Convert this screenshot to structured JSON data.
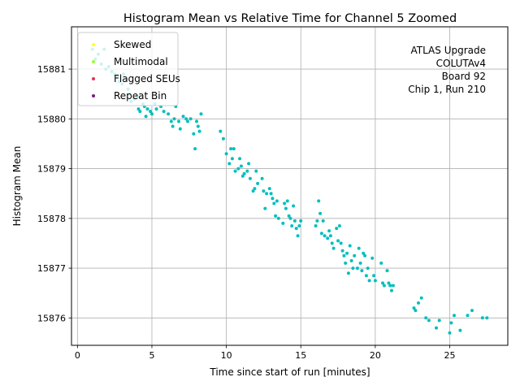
{
  "chart_data": {
    "type": "scatter",
    "title": "Histogram Mean vs Relative Time for Channel 5 Zoomed",
    "xlabel": "Time since start of run [minutes]",
    "ylabel": "Histogram Mean",
    "xlim": [
      -0.4,
      28.9
    ],
    "ylim": [
      15875.45,
      15881.85
    ],
    "xticks": [
      0,
      5,
      10,
      15,
      20,
      25
    ],
    "yticks": [
      15876,
      15877,
      15878,
      15879,
      15880,
      15881
    ],
    "grid": true,
    "legend_position": "top-left",
    "legend": [
      {
        "name": "Skewed",
        "color": "#ffff33"
      },
      {
        "name": "Multimodal",
        "color": "#99ff33"
      },
      {
        "name": "Flagged SEUs",
        "color": "#e8334d"
      },
      {
        "name": "Repeat Bin",
        "color": "#7a1a80"
      }
    ],
    "annotation": [
      "ATLAS Upgrade",
      "COLUTAv4",
      "Board 92",
      "Chip 1, Run 210"
    ],
    "series": [
      {
        "color": "#00bfbf",
        "points": [
          [
            1.0,
            15881.4
          ],
          [
            1.2,
            15881.2
          ],
          [
            1.4,
            15881.3
          ],
          [
            1.6,
            15881.1
          ],
          [
            1.8,
            15881.4
          ],
          [
            1.9,
            15881.0
          ],
          [
            2.1,
            15881.05
          ],
          [
            2.3,
            15880.95
          ],
          [
            2.5,
            15880.9
          ],
          [
            2.7,
            15880.85
          ],
          [
            2.8,
            15880.75
          ],
          [
            3.0,
            15880.7
          ],
          [
            3.1,
            15880.9
          ],
          [
            3.3,
            15880.8
          ],
          [
            3.4,
            15880.6
          ],
          [
            3.5,
            15880.5
          ],
          [
            3.6,
            15880.35
          ],
          [
            3.8,
            15880.4
          ],
          [
            4.0,
            15880.45
          ],
          [
            4.1,
            15880.2
          ],
          [
            4.2,
            15880.15
          ],
          [
            4.4,
            15880.3
          ],
          [
            4.5,
            15880.25
          ],
          [
            4.6,
            15880.05
          ],
          [
            4.7,
            15880.2
          ],
          [
            4.9,
            15880.15
          ],
          [
            5.0,
            15880.1
          ],
          [
            5.2,
            15880.3
          ],
          [
            5.3,
            15880.2
          ],
          [
            5.6,
            15880.25
          ],
          [
            5.8,
            15880.15
          ],
          [
            6.1,
            15880.1
          ],
          [
            6.3,
            15879.95
          ],
          [
            6.4,
            15879.85
          ],
          [
            6.5,
            15880.0
          ],
          [
            6.6,
            15880.25
          ],
          [
            6.8,
            15879.95
          ],
          [
            6.9,
            15879.8
          ],
          [
            7.1,
            15880.05
          ],
          [
            7.3,
            15880.0
          ],
          [
            7.4,
            15879.95
          ],
          [
            7.6,
            15880.0
          ],
          [
            7.8,
            15879.7
          ],
          [
            7.9,
            15879.4
          ],
          [
            8.0,
            15879.95
          ],
          [
            8.1,
            15879.85
          ],
          [
            8.2,
            15879.75
          ],
          [
            8.3,
            15880.1
          ],
          [
            9.6,
            15879.75
          ],
          [
            9.8,
            15879.6
          ],
          [
            10.0,
            15879.3
          ],
          [
            10.2,
            15879.1
          ],
          [
            10.3,
            15879.4
          ],
          [
            10.4,
            15879.2
          ],
          [
            10.5,
            15879.4
          ],
          [
            10.6,
            15878.95
          ],
          [
            10.8,
            15879.0
          ],
          [
            10.9,
            15879.2
          ],
          [
            11.0,
            15879.05
          ],
          [
            11.1,
            15878.85
          ],
          [
            11.2,
            15878.9
          ],
          [
            11.4,
            15878.95
          ],
          [
            11.5,
            15879.1
          ],
          [
            11.6,
            15878.8
          ],
          [
            11.8,
            15878.55
          ],
          [
            11.9,
            15878.6
          ],
          [
            12.0,
            15878.95
          ],
          [
            12.1,
            15878.7
          ],
          [
            12.4,
            15878.8
          ],
          [
            12.5,
            15878.55
          ],
          [
            12.6,
            15878.2
          ],
          [
            12.7,
            15878.5
          ],
          [
            12.9,
            15878.6
          ],
          [
            13.0,
            15878.5
          ],
          [
            13.1,
            15878.4
          ],
          [
            13.2,
            15878.3
          ],
          [
            13.3,
            15878.05
          ],
          [
            13.4,
            15878.35
          ],
          [
            13.5,
            15878.0
          ],
          [
            13.8,
            15877.9
          ],
          [
            13.9,
            15878.3
          ],
          [
            14.0,
            15878.2
          ],
          [
            14.1,
            15878.35
          ],
          [
            14.2,
            15878.05
          ],
          [
            14.3,
            15878.0
          ],
          [
            14.4,
            15877.85
          ],
          [
            14.5,
            15878.25
          ],
          [
            14.6,
            15877.95
          ],
          [
            14.7,
            15877.8
          ],
          [
            14.8,
            15877.65
          ],
          [
            14.9,
            15877.85
          ],
          [
            15.0,
            15877.95
          ],
          [
            16.0,
            15877.85
          ],
          [
            16.1,
            15877.95
          ],
          [
            16.2,
            15878.35
          ],
          [
            16.3,
            15878.1
          ],
          [
            16.4,
            15877.7
          ],
          [
            16.5,
            15877.95
          ],
          [
            16.6,
            15877.65
          ],
          [
            16.8,
            15877.6
          ],
          [
            16.9,
            15877.75
          ],
          [
            17.0,
            15877.65
          ],
          [
            17.1,
            15877.5
          ],
          [
            17.2,
            15877.4
          ],
          [
            17.4,
            15877.8
          ],
          [
            17.5,
            15877.55
          ],
          [
            17.6,
            15877.85
          ],
          [
            17.7,
            15877.5
          ],
          [
            17.8,
            15877.35
          ],
          [
            17.9,
            15877.25
          ],
          [
            18.0,
            15877.1
          ],
          [
            18.1,
            15877.3
          ],
          [
            18.2,
            15876.9
          ],
          [
            18.3,
            15877.45
          ],
          [
            18.4,
            15877.15
          ],
          [
            18.5,
            15877.0
          ],
          [
            18.6,
            15877.25
          ],
          [
            18.8,
            15877.0
          ],
          [
            18.9,
            15877.4
          ],
          [
            19.0,
            15877.1
          ],
          [
            19.1,
            15876.95
          ],
          [
            19.2,
            15877.3
          ],
          [
            19.3,
            15877.25
          ],
          [
            19.4,
            15876.85
          ],
          [
            19.5,
            15877.0
          ],
          [
            19.6,
            15876.75
          ],
          [
            19.8,
            15877.2
          ],
          [
            19.9,
            15876.85
          ],
          [
            20.0,
            15876.75
          ],
          [
            20.4,
            15877.1
          ],
          [
            20.5,
            15876.7
          ],
          [
            20.6,
            15876.65
          ],
          [
            20.8,
            15876.95
          ],
          [
            20.9,
            15876.7
          ],
          [
            21.0,
            15876.65
          ],
          [
            21.1,
            15876.55
          ],
          [
            21.2,
            15876.65
          ],
          [
            22.6,
            15876.2
          ],
          [
            22.7,
            15876.15
          ],
          [
            22.9,
            15876.3
          ],
          [
            23.1,
            15876.4
          ],
          [
            23.4,
            15876.0
          ],
          [
            23.6,
            15875.95
          ],
          [
            24.1,
            15875.8
          ],
          [
            24.3,
            15875.95
          ],
          [
            25.0,
            15875.7
          ],
          [
            25.1,
            15875.9
          ],
          [
            25.3,
            15876.05
          ],
          [
            25.7,
            15875.75
          ],
          [
            26.2,
            15876.05
          ],
          [
            26.5,
            15876.15
          ],
          [
            27.2,
            15876.0
          ],
          [
            27.5,
            15876.0
          ]
        ]
      }
    ]
  }
}
